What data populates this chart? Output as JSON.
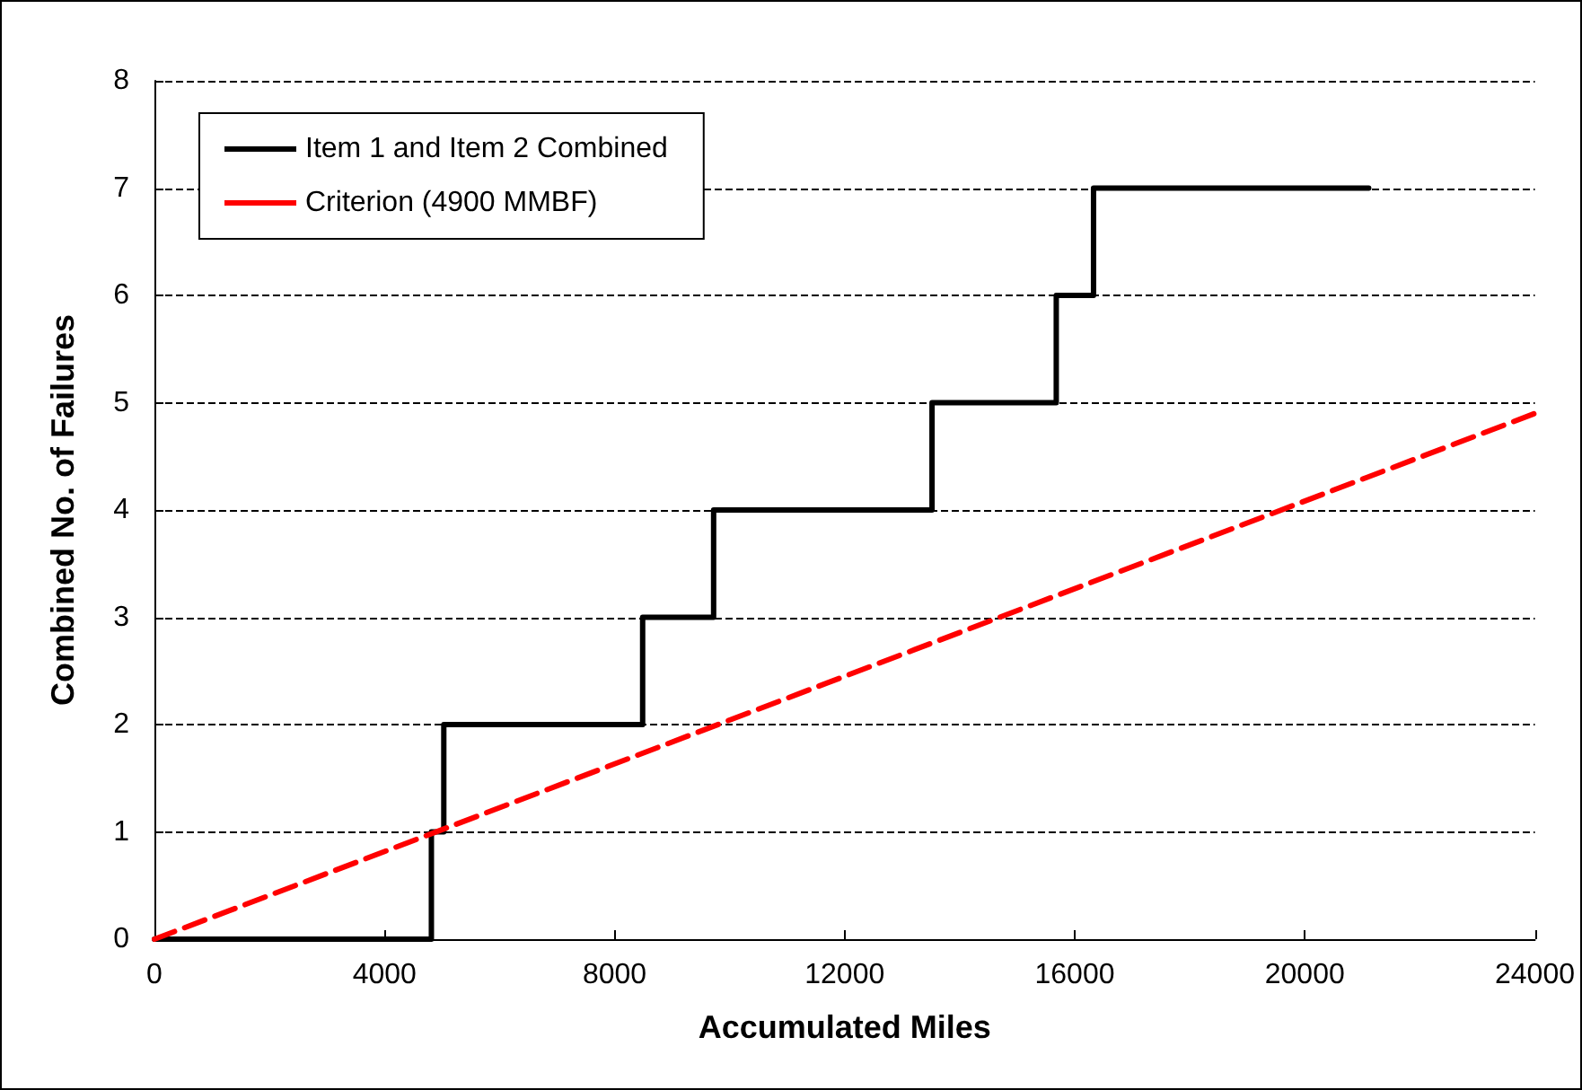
{
  "chart_data": {
    "type": "step",
    "xlabel": "Accumulated Miles",
    "ylabel": "Combined No. of Failures",
    "xlim": [
      0,
      24000
    ],
    "xticks": [
      0,
      4000,
      8000,
      12000,
      16000,
      20000,
      24000
    ],
    "ylim": [
      0,
      8
    ],
    "yticks": [
      0,
      1,
      2,
      3,
      4,
      5,
      6,
      7,
      8
    ],
    "grid": "y",
    "legend": "top left",
    "series": [
      {
        "name": "Item 1 and Item 2 Combined",
        "color": "#000000",
        "x": [
          0,
          4815,
          5031,
          8488,
          9722,
          13519,
          15679,
          16327,
          21111
        ],
        "values": [
          0,
          1,
          2,
          3,
          4,
          5,
          6,
          7,
          7
        ]
      },
      {
        "name": "Criterion (4900 MMBF)",
        "type": "line",
        "color": "#ff0000",
        "line_style": "dashed",
        "x": [
          0,
          24000
        ],
        "values": [
          0,
          4.9
        ]
      }
    ]
  }
}
